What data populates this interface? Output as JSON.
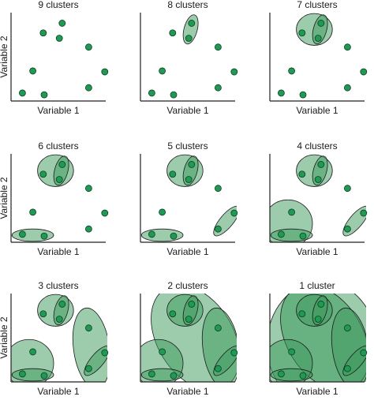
{
  "axes": {
    "xlabel": "Variable 1",
    "ylabel": "Variable 2"
  },
  "panels": [
    {
      "title": "9 clusters"
    },
    {
      "title": "8 clusters"
    },
    {
      "title": "7 clusters"
    },
    {
      "title": "6 clusters"
    },
    {
      "title": "5 clusters"
    },
    {
      "title": "4 clusters"
    },
    {
      "title": "3 clusters"
    },
    {
      "title": "2 clusters"
    },
    {
      "title": "1 cluster"
    }
  ],
  "colors": {
    "point_fill": "#1f9a55",
    "point_stroke": "#0f3d22",
    "cluster_fill": "#3c9a5c",
    "cluster_stroke": "#1a1a1a",
    "axis": "#222222"
  }
}
